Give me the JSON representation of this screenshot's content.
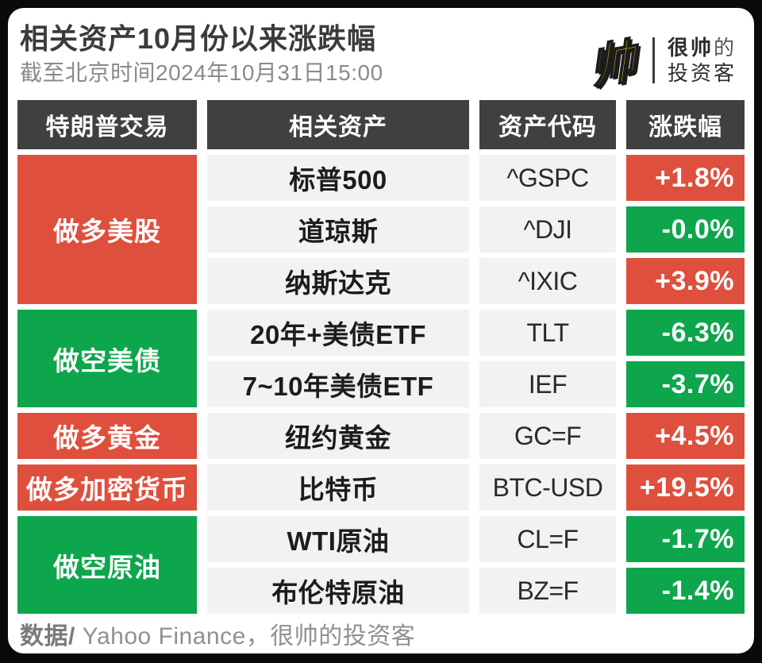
{
  "header": {
    "title": "相关资产10月份以来涨跌幅",
    "subtitle": "截至北京时间2024年10月31日15:00",
    "brand": {
      "glyph": "帅",
      "name_line1_bold": "很帅",
      "name_line1_light": "的",
      "name_line2": "投资客"
    }
  },
  "colors": {
    "red": "#df4f3d",
    "green": "#0da64c",
    "header_bg": "#404040",
    "row_bg": "#f2f2f2",
    "brand_yellow": "#ffe215"
  },
  "table": {
    "columns": [
      "特朗普交易",
      "相关资产",
      "资产代码",
      "涨跌幅"
    ],
    "groups": [
      {
        "label": "做多美股",
        "color": "red",
        "rows": [
          {
            "asset": "标普500",
            "code": "^GSPC",
            "change": "+1.8%",
            "change_color": "red"
          },
          {
            "asset": "道琼斯",
            "code": "^DJI",
            "change": "-0.0%",
            "change_color": "green"
          },
          {
            "asset": "纳斯达克",
            "code": "^IXIC",
            "change": "+3.9%",
            "change_color": "red"
          }
        ]
      },
      {
        "label": "做空美债",
        "color": "green",
        "rows": [
          {
            "asset": "20年+美债ETF",
            "code": "TLT",
            "change": "-6.3%",
            "change_color": "green"
          },
          {
            "asset": "7~10年美债ETF",
            "code": "IEF",
            "change": "-3.7%",
            "change_color": "green"
          }
        ]
      },
      {
        "label": "做多黄金",
        "color": "red",
        "rows": [
          {
            "asset": "纽约黄金",
            "code": "GC=F",
            "change": "+4.5%",
            "change_color": "red"
          }
        ]
      },
      {
        "label": "做多加密货币",
        "color": "red",
        "rows": [
          {
            "asset": "比特币",
            "code": "BTC-USD",
            "change": "+19.5%",
            "change_color": "red"
          }
        ]
      },
      {
        "label": "做空原油",
        "color": "green",
        "rows": [
          {
            "asset": "WTI原油",
            "code": "CL=F",
            "change": "-1.7%",
            "change_color": "green"
          },
          {
            "asset": "布伦特原油",
            "code": "BZ=F",
            "change": "-1.4%",
            "change_color": "green"
          }
        ]
      }
    ]
  },
  "footer": {
    "label": "数据/",
    "text": " Yahoo Finance，很帅的投资客"
  },
  "chart_data": {
    "type": "table",
    "title": "相关资产10月份以来涨跌幅",
    "as_of": "截至北京时间2024年10月31日15:00",
    "columns": [
      "特朗普交易",
      "相关资产",
      "资产代码",
      "涨跌幅"
    ],
    "rows": [
      {
        "trade": "做多美股",
        "asset": "标普500",
        "code": "^GSPC",
        "change_pct": 1.8
      },
      {
        "trade": "做多美股",
        "asset": "道琼斯",
        "code": "^DJI",
        "change_pct": -0.0
      },
      {
        "trade": "做多美股",
        "asset": "纳斯达克",
        "code": "^IXIC",
        "change_pct": 3.9
      },
      {
        "trade": "做空美债",
        "asset": "20年+美债ETF",
        "code": "TLT",
        "change_pct": -6.3
      },
      {
        "trade": "做空美债",
        "asset": "7~10年美债ETF",
        "code": "IEF",
        "change_pct": -3.7
      },
      {
        "trade": "做多黄金",
        "asset": "纽约黄金",
        "code": "GC=F",
        "change_pct": 4.5
      },
      {
        "trade": "做多加密货币",
        "asset": "比特币",
        "code": "BTC-USD",
        "change_pct": 19.5
      },
      {
        "trade": "做空原油",
        "asset": "WTI原油",
        "code": "CL=F",
        "change_pct": -1.7
      },
      {
        "trade": "做空原油",
        "asset": "布伦特原油",
        "code": "BZ=F",
        "change_pct": -1.4
      }
    ],
    "color_rule": "上涨为红色，下跌为绿色",
    "source": "Yahoo Finance，很帅的投资客"
  }
}
